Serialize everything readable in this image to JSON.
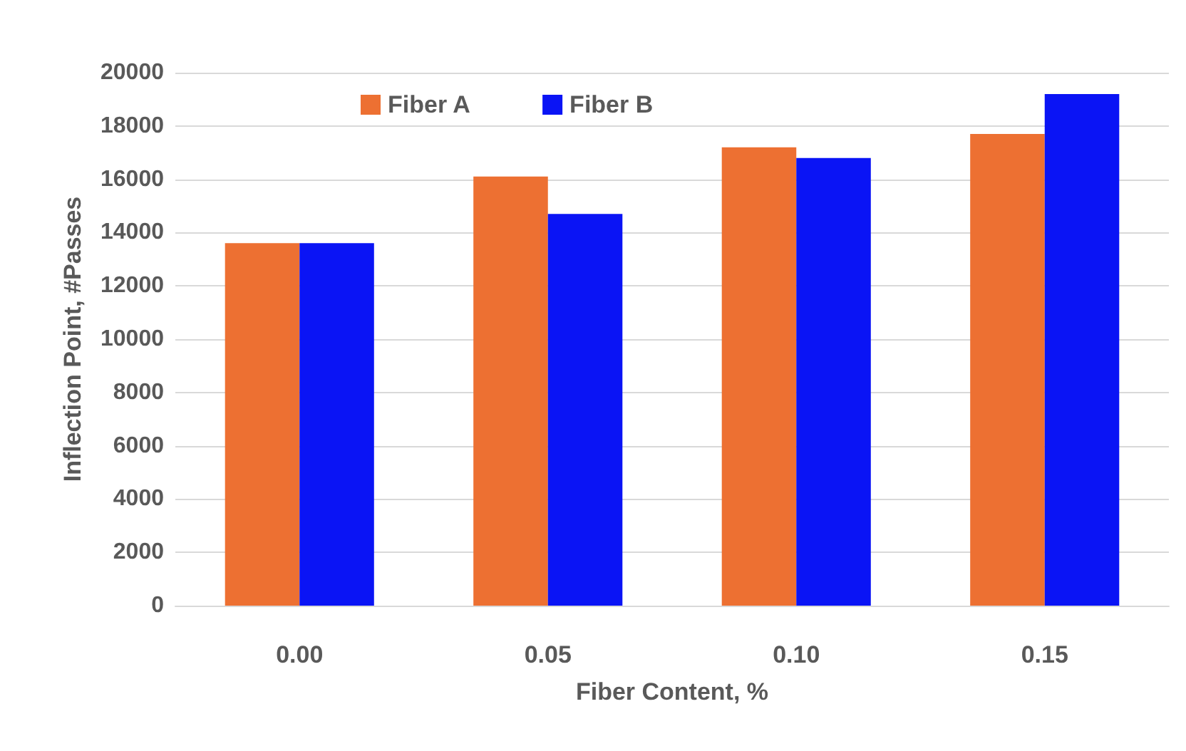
{
  "chart_data": {
    "type": "bar",
    "xlabel": "Fiber Content, %",
    "ylabel": "Inflection Point, #Passes",
    "categories": [
      "0.00",
      "0.05",
      "0.10",
      "0.15"
    ],
    "series": [
      {
        "name": "Fiber A",
        "color": "#ed7032",
        "values": [
          13600,
          16100,
          17200,
          17700
        ]
      },
      {
        "name": "Fiber B",
        "color": "#0a14f5",
        "values": [
          13600,
          14700,
          16800,
          19200
        ]
      }
    ],
    "ylim": [
      0,
      20000
    ],
    "yticks": [
      0,
      2000,
      4000,
      6000,
      8000,
      10000,
      12000,
      14000,
      16000,
      18000,
      20000
    ],
    "grid": "y",
    "legend": "top"
  }
}
